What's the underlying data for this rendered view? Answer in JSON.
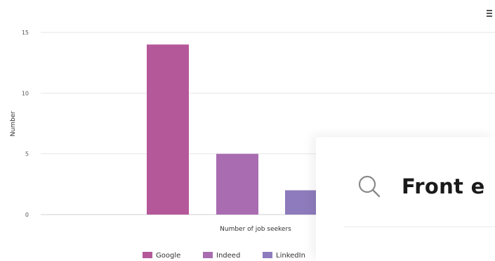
{
  "chart_data": {
    "type": "bar",
    "categories": [
      "Google",
      "Indeed",
      "LinkedIn"
    ],
    "values": [
      14,
      5,
      2
    ],
    "colors": [
      "#b5589a",
      "#a96cb0",
      "#8e7bbd"
    ],
    "xlabel": "Number of job seekers",
    "ylabel": "Number",
    "ylim": [
      0,
      15
    ],
    "yticks": [
      0,
      5,
      10,
      15
    ],
    "grid": true,
    "legend_position": "bottom"
  },
  "menu": {
    "icon": "menu-icon"
  },
  "search": {
    "icon": "search-icon",
    "text": "Front e"
  }
}
